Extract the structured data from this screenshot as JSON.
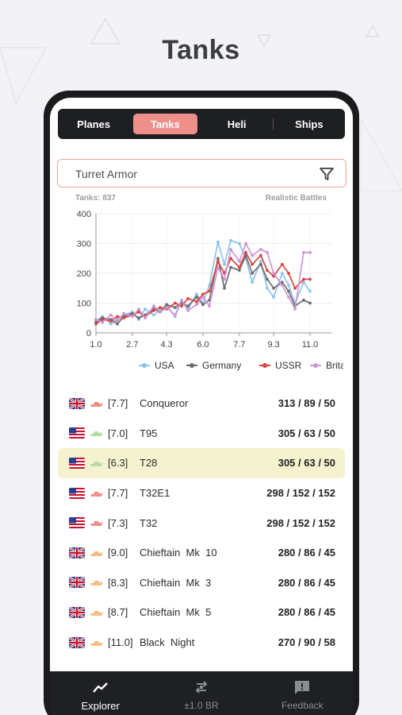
{
  "hero": {
    "title": "Tanks"
  },
  "tabs": [
    {
      "label": "Planes",
      "active": false
    },
    {
      "label": "Tanks",
      "active": true
    },
    {
      "label": "Heli",
      "active": false
    },
    {
      "label": "Ships",
      "active": false
    }
  ],
  "search": {
    "value": "Turret Armor",
    "icon": "filter-icon"
  },
  "meta": {
    "count_label": "Tanks: 837",
    "mode_label": "Realistic Battles"
  },
  "chart_data": {
    "type": "line",
    "x_ticks": [
      "1.0",
      "2.7",
      "4.3",
      "6.0",
      "7.7",
      "9.3",
      "11.0"
    ],
    "y_ticks": [
      "0",
      "100",
      "200",
      "300",
      "400"
    ],
    "xlim": [
      1.0,
      12.0
    ],
    "ylim": [
      0,
      400
    ],
    "grid": true,
    "legend_position": "bottom",
    "series": [
      {
        "name": "USA",
        "color": "#8cc2ea",
        "x": [
          1.0,
          1.3,
          1.7,
          2.0,
          2.3,
          2.7,
          3.0,
          3.3,
          3.7,
          4.0,
          4.3,
          4.7,
          5.0,
          5.3,
          5.7,
          6.0,
          6.3,
          6.7,
          7.0,
          7.3,
          7.7,
          8.0,
          8.3,
          8.7,
          9.0,
          9.3,
          9.7,
          10.0,
          10.3,
          10.7,
          11.0
        ],
        "y": [
          40,
          55,
          30,
          45,
          60,
          70,
          45,
          80,
          60,
          75,
          90,
          55,
          110,
          80,
          130,
          100,
          160,
          305,
          230,
          310,
          300,
          250,
          170,
          240,
          150,
          120,
          200,
          160,
          100,
          170,
          140
        ]
      },
      {
        "name": "Germany",
        "color": "#6d6d6d",
        "x": [
          1.0,
          1.3,
          1.7,
          2.0,
          2.3,
          2.7,
          3.0,
          3.3,
          3.7,
          4.0,
          4.3,
          4.7,
          5.0,
          5.3,
          5.7,
          6.0,
          6.3,
          6.7,
          7.0,
          7.3,
          7.7,
          8.0,
          8.3,
          8.7,
          9.0,
          9.3,
          9.7,
          10.0,
          10.3,
          10.7,
          11.0
        ],
        "y": [
          35,
          50,
          45,
          30,
          55,
          65,
          50,
          60,
          80,
          70,
          95,
          85,
          100,
          90,
          120,
          95,
          110,
          250,
          150,
          220,
          210,
          260,
          200,
          230,
          180,
          150,
          170,
          140,
          90,
          110,
          100
        ]
      },
      {
        "name": "USSR",
        "color": "#d64541",
        "x": [
          1.0,
          1.3,
          1.7,
          2.0,
          2.3,
          2.7,
          3.0,
          3.3,
          3.7,
          4.0,
          4.3,
          4.7,
          5.0,
          5.3,
          5.7,
          6.0,
          6.3,
          6.7,
          7.0,
          7.3,
          7.7,
          8.0,
          8.3,
          8.7,
          9.0,
          9.3,
          9.7,
          10.0,
          10.3,
          10.7,
          11.0
        ],
        "y": [
          30,
          45,
          40,
          55,
          50,
          60,
          70,
          55,
          75,
          85,
          80,
          100,
          90,
          115,
          105,
          130,
          140,
          240,
          200,
          250,
          220,
          270,
          230,
          260,
          210,
          190,
          230,
          200,
          150,
          180,
          180
        ]
      },
      {
        "name": "Britain",
        "color": "#cf94d6",
        "x": [
          1.0,
          1.3,
          1.7,
          2.0,
          2.3,
          2.7,
          3.0,
          3.3,
          3.7,
          4.0,
          4.3,
          4.7,
          5.0,
          5.3,
          5.7,
          6.0,
          6.3,
          6.7,
          7.0,
          7.3,
          7.7,
          8.0,
          8.3,
          8.7,
          9.0,
          9.3,
          9.7,
          10.0,
          10.3,
          10.7,
          11.0
        ],
        "y": [
          45,
          35,
          60,
          40,
          65,
          55,
          80,
          50,
          90,
          70,
          85,
          60,
          110,
          75,
          95,
          120,
          90,
          220,
          180,
          280,
          240,
          300,
          260,
          280,
          270,
          200,
          160,
          120,
          80,
          270,
          270
        ]
      }
    ]
  },
  "tanks": [
    {
      "country": "uk",
      "tank_color": "#ee8f8a",
      "br": "[7.7]",
      "name": "Conqueror",
      "values": "313 / 89 / 50",
      "highlight": false
    },
    {
      "country": "us",
      "tank_color": "#b5dba6",
      "br": "[7.0]",
      "name": "T95",
      "values": "305 / 63 / 50",
      "highlight": false
    },
    {
      "country": "us",
      "tank_color": "#b5dba6",
      "br": "[6.3]",
      "name": "T28",
      "values": "305 / 63 / 50",
      "highlight": true
    },
    {
      "country": "us",
      "tank_color": "#ee8f8a",
      "br": "[7.7]",
      "name": "T32E1",
      "values": "298 / 152 / 152",
      "highlight": false
    },
    {
      "country": "us",
      "tank_color": "#ee8f8a",
      "br": "[7.3]",
      "name": "T32",
      "values": "298 / 152 / 152",
      "highlight": false
    },
    {
      "country": "uk",
      "tank_color": "#f3bd86",
      "br": "[9.0]",
      "name": "Chieftain  Mk  10",
      "values": "280 / 86 / 45",
      "highlight": false
    },
    {
      "country": "uk",
      "tank_color": "#f3bd86",
      "br": "[8.3]",
      "name": "Chieftain  Mk  3",
      "values": "280 / 86 / 45",
      "highlight": false
    },
    {
      "country": "uk",
      "tank_color": "#f3bd86",
      "br": "[8.7]",
      "name": "Chieftain  Mk  5",
      "values": "280 / 86 / 45",
      "highlight": false
    },
    {
      "country": "uk",
      "tank_color": "#f3bd86",
      "br": "[11.0]",
      "name": "Black  Night",
      "values": "270 / 90 / 58",
      "highlight": false
    }
  ],
  "nav": [
    {
      "label": "Explorer",
      "icon": "trend-icon",
      "active": true
    },
    {
      "label": "±1.0 BR",
      "icon": "swap-icon",
      "active": false
    },
    {
      "label": "Feedback",
      "icon": "feedback-icon",
      "active": false
    }
  ]
}
